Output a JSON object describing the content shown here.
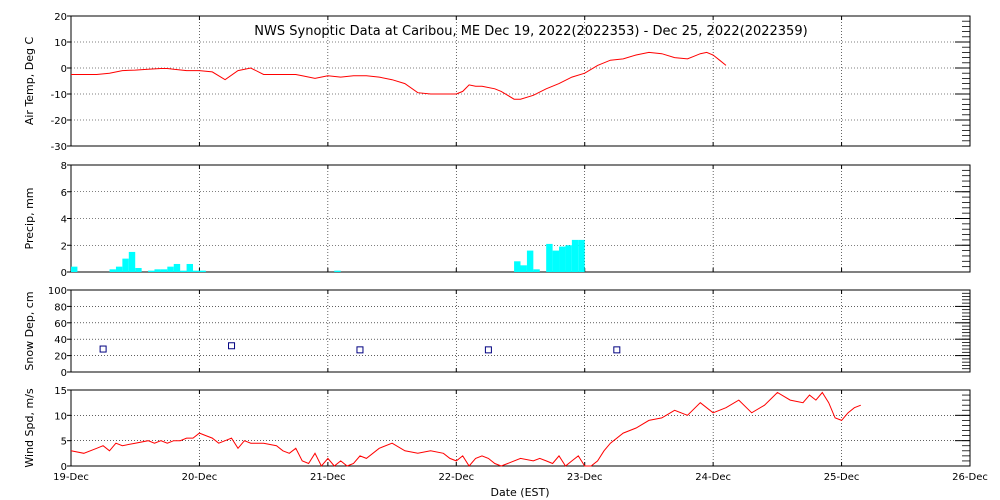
{
  "chart_data": [
    {
      "type": "line",
      "title": "NWS Synoptic Data at Caribou, ME   Dec 19, 2022(2022353) - Dec 25, 2022(2022359)",
      "ylabel": "Air Temp, Deg C",
      "ylim": [
        -30,
        20
      ],
      "yticks": [
        "20",
        "10",
        "0",
        "-10",
        "-20",
        "-30"
      ],
      "grid": true,
      "color": "#ff0000",
      "x": [
        0.0,
        0.1,
        0.2,
        0.3,
        0.4,
        0.5,
        0.6,
        0.7,
        0.75,
        0.8,
        0.9,
        1.0,
        1.1,
        1.2,
        1.3,
        1.4,
        1.5,
        1.6,
        1.7,
        1.75,
        1.8,
        1.9,
        2.0,
        2.1,
        2.2,
        2.3,
        2.4,
        2.5,
        2.6,
        2.7,
        2.8,
        2.9,
        3.0,
        3.05,
        3.1,
        3.15,
        3.2,
        3.3,
        3.35,
        3.4,
        3.45,
        3.5,
        3.6,
        3.7,
        3.8,
        3.9,
        4.0,
        4.1,
        4.2,
        4.3,
        4.4,
        4.5,
        4.6,
        4.7,
        4.8,
        4.85,
        4.9,
        4.95,
        5.0,
        5.05,
        5.1
      ],
      "values": [
        -2.5,
        -2.5,
        -2.5,
        -2.0,
        -1.0,
        -0.8,
        -0.5,
        -0.2,
        -0.2,
        -0.5,
        -1.0,
        -1.0,
        -1.5,
        -4.5,
        -1.0,
        0.0,
        -2.5,
        -2.5,
        -2.5,
        -2.5,
        -3.0,
        -4.0,
        -3.0,
        -3.5,
        -3.0,
        -3.0,
        -3.5,
        -4.5,
        -6.0,
        -9.5,
        -10.0,
        -10.0,
        -10.0,
        -9.0,
        -6.5,
        -7.0,
        -7.0,
        -8.0,
        -9.0,
        -10.5,
        -12.0,
        -12.0,
        -10.5,
        -8.0,
        -6.0,
        -3.5,
        -2.0,
        1.0,
        3.0,
        3.5,
        5.0,
        6.0,
        5.5,
        4.0,
        3.5,
        4.5,
        5.5,
        6.0,
        5.0,
        3.0,
        1.0
      ]
    },
    {
      "type": "bar",
      "ylabel": "Precip, mm",
      "ylim": [
        0,
        8
      ],
      "yticks": [
        "8",
        "6",
        "4",
        "2",
        "0"
      ],
      "grid": true,
      "color": "#00ffff",
      "x": [
        0.0,
        0.3,
        0.35,
        0.4,
        0.45,
        0.5,
        0.6,
        0.65,
        0.7,
        0.75,
        0.8,
        0.85,
        0.9,
        0.95,
        1.0,
        2.05,
        3.45,
        3.5,
        3.55,
        3.6,
        3.7,
        3.75,
        3.8,
        3.85,
        3.9,
        3.95
      ],
      "values": [
        0.4,
        0.2,
        0.4,
        1.0,
        1.5,
        0.3,
        0.1,
        0.2,
        0.2,
        0.4,
        0.6,
        0.1,
        0.6,
        0.1,
        0.1,
        0.1,
        0.8,
        0.5,
        1.6,
        0.2,
        2.1,
        1.6,
        1.9,
        2.0,
        2.4,
        2.4
      ]
    },
    {
      "type": "scatter",
      "ylabel": "Snow Dep, cm",
      "ylim": [
        0,
        100
      ],
      "yticks": [
        "100",
        "80",
        "60",
        "40",
        "20",
        "0"
      ],
      "grid": true,
      "color": "#000080",
      "x": [
        0.25,
        1.25,
        2.25,
        3.25,
        4.25
      ],
      "values": [
        28,
        32,
        27,
        27,
        27
      ]
    },
    {
      "type": "line",
      "ylabel": "Wind Spd, m/s",
      "xlabel": "Date (EST)",
      "ylim": [
        0,
        15
      ],
      "yticks": [
        "15",
        "10",
        "5",
        "0"
      ],
      "grid": true,
      "color": "#ff0000",
      "categories": [
        "19-Dec",
        "20-Dec",
        "21-Dec",
        "22-Dec",
        "23-Dec",
        "24-Dec",
        "25-Dec",
        "26-Dec"
      ],
      "x": [
        0.0,
        0.1,
        0.2,
        0.25,
        0.3,
        0.35,
        0.4,
        0.5,
        0.6,
        0.65,
        0.7,
        0.75,
        0.8,
        0.85,
        0.9,
        0.95,
        1.0,
        1.05,
        1.1,
        1.15,
        1.2,
        1.25,
        1.3,
        1.35,
        1.4,
        1.5,
        1.6,
        1.65,
        1.7,
        1.75,
        1.8,
        1.85,
        1.9,
        1.95,
        2.0,
        2.05,
        2.1,
        2.15,
        2.2,
        2.25,
        2.3,
        2.4,
        2.5,
        2.6,
        2.7,
        2.8,
        2.9,
        2.95,
        3.0,
        3.05,
        3.1,
        3.15,
        3.2,
        3.25,
        3.3,
        3.35,
        3.4,
        3.5,
        3.6,
        3.65,
        3.7,
        3.75,
        3.8,
        3.85,
        3.9,
        3.95,
        4.0,
        4.05,
        4.1,
        4.15,
        4.2,
        4.3,
        4.4,
        4.5,
        4.6,
        4.7,
        4.8,
        4.9,
        5.0,
        5.1,
        5.2,
        5.3,
        5.4,
        5.5,
        5.6,
        5.7,
        5.75,
        5.8,
        5.85,
        5.9,
        5.95,
        6.0,
        6.05,
        6.1,
        6.15
      ],
      "values": [
        3,
        2.5,
        3.5,
        4,
        3,
        4.5,
        4,
        4.5,
        5,
        4.5,
        5,
        4.5,
        5,
        5,
        5.5,
        5.5,
        6.5,
        6,
        5.5,
        4.5,
        5,
        5.5,
        3.5,
        5,
        4.5,
        4.5,
        4,
        3,
        2.5,
        3.5,
        1,
        0.5,
        2.5,
        0,
        1.5,
        0,
        1,
        0,
        0.5,
        2,
        1.5,
        3.5,
        4.5,
        3,
        2.5,
        3,
        2.5,
        1.5,
        1,
        2,
        0,
        1.5,
        2,
        1.5,
        0.5,
        0,
        0.5,
        1.5,
        1,
        1.5,
        1,
        0.5,
        2,
        0,
        1,
        2,
        0,
        0,
        1,
        3,
        4.5,
        6.5,
        7.5,
        9,
        9.5,
        11,
        10,
        12.5,
        10.5,
        11.5,
        13,
        10.5,
        12,
        14.5,
        13,
        12.5,
        14,
        13,
        14.5,
        12.5,
        9.5,
        9,
        10.5,
        11.5,
        12
      ]
    }
  ]
}
